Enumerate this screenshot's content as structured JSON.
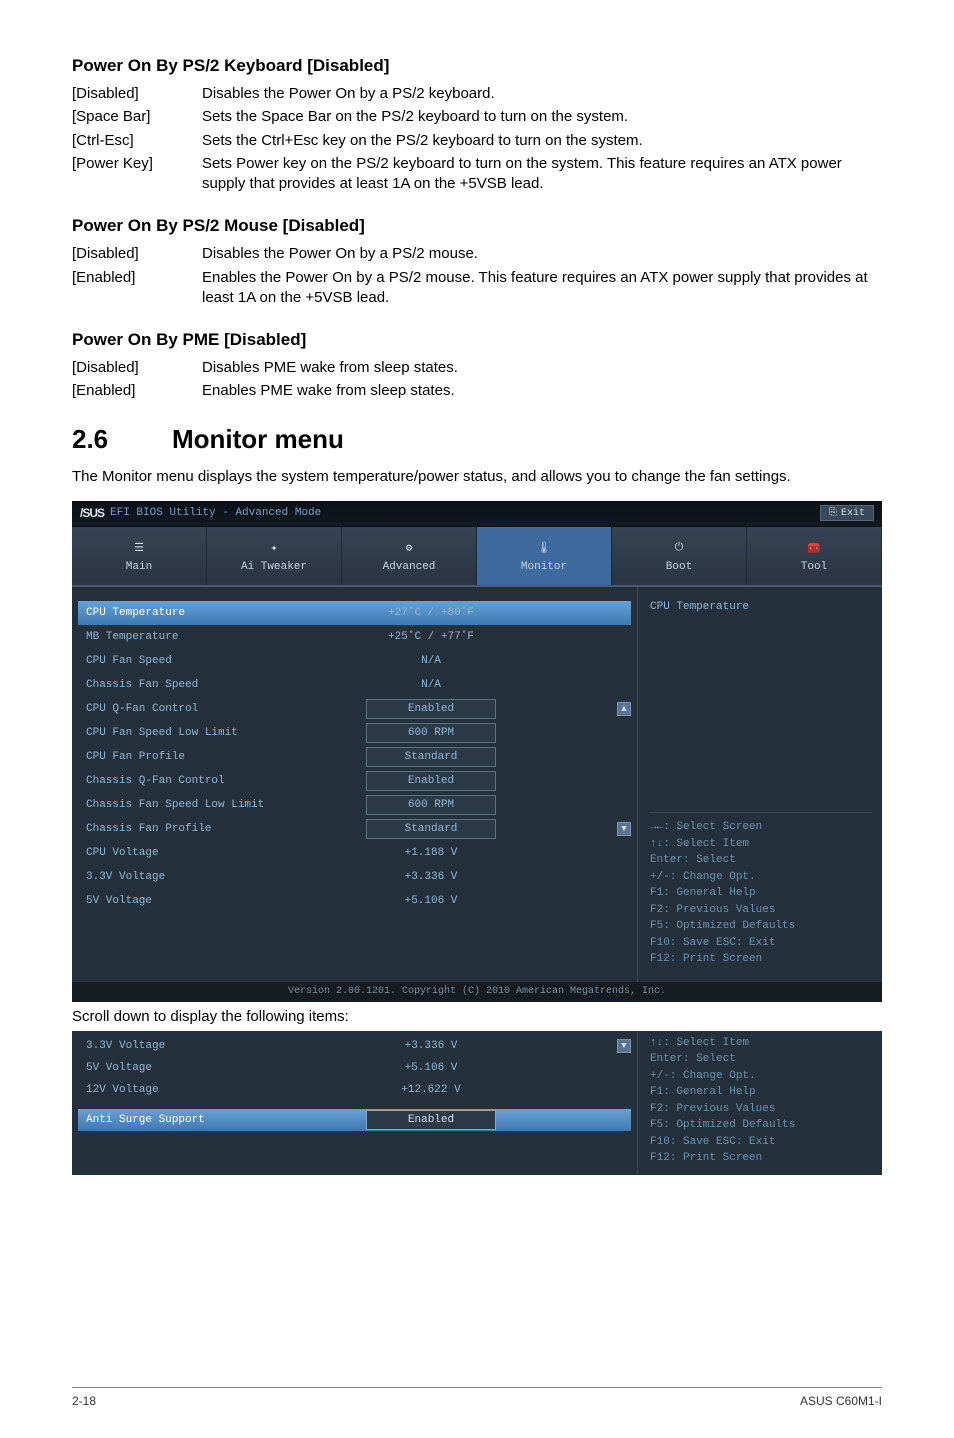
{
  "sections": {
    "ps2kb": {
      "heading": "Power On By PS/2 Keyboard [Disabled]",
      "rows": [
        {
          "key": "[Disabled]",
          "desc": "Disables the Power On by a PS/2 keyboard."
        },
        {
          "key": "[Space Bar]",
          "desc": "Sets the Space Bar on the PS/2 keyboard to turn on the system."
        },
        {
          "key": "[Ctrl-Esc]",
          "desc": "Sets the Ctrl+Esc key on the PS/2 keyboard to turn on the system."
        },
        {
          "key": "[Power Key]",
          "desc": "Sets Power key on the PS/2 keyboard to turn on the system. This feature requires an ATX power supply that provides at least 1A on the +5VSB lead."
        }
      ]
    },
    "ps2mouse": {
      "heading": "Power On By PS/2 Mouse [Disabled]",
      "rows": [
        {
          "key": "[Disabled]",
          "desc": "Disables the Power On by a PS/2 mouse."
        },
        {
          "key": "[Enabled]",
          "desc": "Enables the Power On by a PS/2 mouse. This feature requires an ATX power supply that provides at least 1A on the +5VSB lead."
        }
      ]
    },
    "pme": {
      "heading": "Power On By PME [Disabled]",
      "rows": [
        {
          "key": "[Disabled]",
          "desc": "Disables PME wake from sleep states."
        },
        {
          "key": "[Enabled]",
          "desc": "Enables PME wake from sleep states."
        }
      ]
    }
  },
  "h2": {
    "num": "2.6",
    "title": "Monitor menu"
  },
  "intro": "The Monitor menu displays the system temperature/power status, and allows you to change the fan settings.",
  "bios": {
    "titlebar": {
      "logo": "/SUS",
      "title": "EFI BIOS Utility - Advanced Mode",
      "exit": "Exit"
    },
    "tabs": [
      {
        "label": "Main",
        "icon": "☰"
      },
      {
        "label": "Ai Tweaker",
        "icon": "✦"
      },
      {
        "label": "Advanced",
        "icon": "⚙"
      },
      {
        "label": "Monitor",
        "icon": "🌡"
      },
      {
        "label": "Boot",
        "icon": "⏻"
      },
      {
        "label": "Tool",
        "icon": "🧰"
      }
    ],
    "active_tab": 3,
    "rows": [
      {
        "label": "CPU Temperature",
        "value": "+27˚C / +80˚F",
        "boxed": false,
        "selected": true
      },
      {
        "label": "MB Temperature",
        "value": "+25˚C / +77˚F",
        "boxed": false
      },
      {
        "label": "CPU Fan Speed",
        "value": "N/A",
        "boxed": false
      },
      {
        "label": "Chassis Fan Speed",
        "value": "N/A",
        "boxed": false
      },
      {
        "label": "CPU Q-Fan Control",
        "value": "Enabled",
        "boxed": true,
        "handle": "up"
      },
      {
        "label": "CPU Fan Speed Low Limit",
        "value": "600 RPM",
        "boxed": true
      },
      {
        "label": " CPU Fan Profile",
        "value": "Standard",
        "boxed": true
      },
      {
        "label": "Chassis Q-Fan Control",
        "value": "Enabled",
        "boxed": true
      },
      {
        "label": "Chassis Fan Speed Low Limit",
        "value": "600 RPM",
        "boxed": true
      },
      {
        "label": " Chassis Fan Profile",
        "value": "Standard",
        "boxed": true,
        "handle": "down"
      },
      {
        "label": "CPU Voltage",
        "value": "+1.188 V",
        "boxed": false
      },
      {
        "label": "3.3V Voltage",
        "value": "+3.336 V",
        "boxed": false
      },
      {
        "label": "5V Voltage",
        "value": "+5.106 V",
        "boxed": false
      }
    ],
    "side_title": "CPU Temperature",
    "help": [
      "→←: Select Screen",
      "↑↓: Select Item",
      "Enter: Select",
      "+/-: Change Opt.",
      "F1: General Help",
      "F2: Previous Values",
      "F5: Optimized Defaults",
      "F10: Save  ESC: Exit",
      "F12: Print Screen"
    ],
    "footer": "Version 2.00.1201. Copyright (C) 2010 American Megatrends, Inc."
  },
  "caption": "Scroll down to display the following items:",
  "bios2": {
    "rows": [
      {
        "label": "3.3V Voltage",
        "value": "+3.336 V",
        "handle": true
      },
      {
        "label": "5V Voltage",
        "value": "+5.106 V"
      },
      {
        "label": "12V Voltage",
        "value": "+12.622 V"
      }
    ],
    "surge": {
      "label": "Anti Surge Support",
      "value": "Enabled"
    },
    "help": [
      "↑↓: Select Item",
      "Enter: Select",
      "+/-: Change Opt.",
      "F1: General Help",
      "F2: Previous Values",
      "F5: Optimized Defaults",
      "F10: Save  ESC: Exit",
      "F12: Print Screen"
    ]
  },
  "pagefoot": {
    "left": "2-18",
    "right": "ASUS C60M1-I"
  }
}
